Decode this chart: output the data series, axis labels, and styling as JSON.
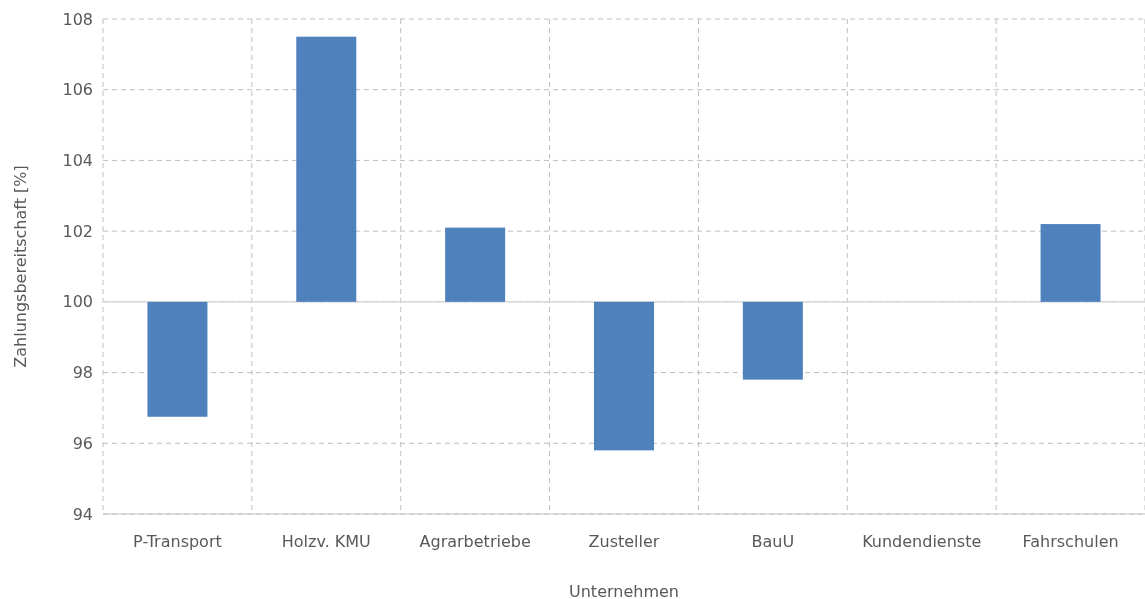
{
  "chart_data": {
    "type": "bar",
    "xlabel": "Unternehmen",
    "ylabel": "Zahlungsbereitschaft [%]",
    "categories": [
      "P-Transport",
      "Holzv. KMU",
      "Agrarbetriebe",
      "Zusteller",
      "BauU",
      "Kundendienste",
      "Fahrschulen"
    ],
    "values": [
      -3.25,
      7.5,
      2.1,
      -4.2,
      -2.2,
      null,
      2.2
    ],
    "base": [
      100,
      100,
      100,
      100,
      100,
      null,
      100
    ],
    "color": "#4f81bd",
    "ylim": [
      94,
      108
    ],
    "yticks": [
      94,
      96,
      98,
      100,
      102,
      104,
      106,
      108
    ],
    "grid": true,
    "ref_lines": [
      {
        "axis": "y",
        "value": 100,
        "color": "#d9d9d9"
      }
    ]
  }
}
